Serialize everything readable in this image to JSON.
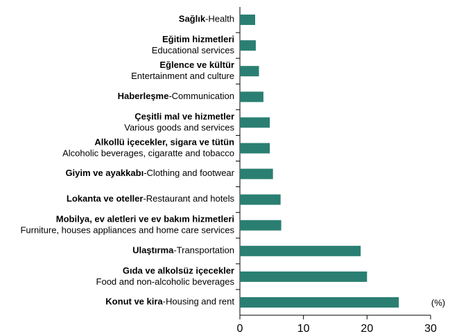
{
  "chart_data": {
    "type": "barh",
    "categories": [
      {
        "tr": "Sağlık",
        "en": "-Health"
      },
      {
        "tr": "Eğitim hizmetleri",
        "en": "Educational services",
        "two_line": true
      },
      {
        "tr": "Eğlence ve kültür",
        "en": "Entertainment and culture",
        "two_line": true
      },
      {
        "tr": "Haberleşme",
        "en": "-Communication"
      },
      {
        "tr": "Çeşitli mal ve hizmetler",
        "en": "Various goods and services",
        "two_line": true
      },
      {
        "tr": "Alkollü içecekler, sigara ve tütün",
        "en": "Alcoholic beverages, cigaratte and tobacco",
        "two_line": true
      },
      {
        "tr": "Giyim ve ayakkabı",
        "en": "-Clothing and footwear"
      },
      {
        "tr": "Lokanta ve oteller",
        "en": "-Restaurant and hotels"
      },
      {
        "tr": "Mobilya, ev aletleri ve ev bakım hizmetleri",
        "en": "Furniture, houses appliances and home care services",
        "two_line": true
      },
      {
        "tr": "Ulaştırma",
        "en": "-Transportation"
      },
      {
        "tr": "Gıda ve alkolsüz içecekler",
        "en": "Food and non-alcoholic beverages",
        "two_line": true
      },
      {
        "tr": "Konut ve kira",
        "en": "-Housing and rent"
      }
    ],
    "values": [
      2.4,
      2.5,
      3.0,
      3.7,
      4.7,
      4.7,
      5.2,
      6.4,
      6.5,
      19.0,
      20.0,
      25.0
    ],
    "color": "#2a7f72",
    "xlim": [
      0,
      30
    ],
    "xticks": [
      0,
      10,
      20,
      30
    ],
    "x_unit": "(%)"
  }
}
